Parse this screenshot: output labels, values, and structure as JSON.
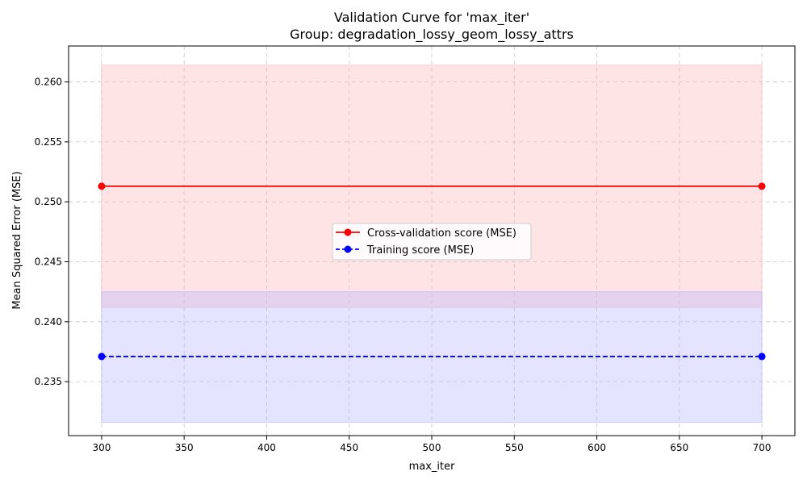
{
  "chart_data": {
    "type": "line",
    "title": "Validation Curve for 'max_iter'",
    "subtitle": "Group: degradation_lossy_geom_lossy_attrs",
    "xlabel": "max_iter",
    "ylabel": "Mean Squared Error (MSE)",
    "xlim": [
      280,
      720
    ],
    "ylim": [
      0.2305,
      0.263
    ],
    "xticks": [
      300,
      350,
      400,
      450,
      500,
      550,
      600,
      650,
      700
    ],
    "yticks": [
      0.235,
      0.24,
      0.245,
      0.25,
      0.255,
      0.26
    ],
    "ytick_labels": [
      "0.235",
      "0.240",
      "0.245",
      "0.250",
      "0.255",
      "0.260"
    ],
    "grid": true,
    "legend_position": "center",
    "series": [
      {
        "name": "Cross-validation score (MSE)",
        "color": "#ff0000",
        "band_color": "#ffb3b8",
        "line_style": "solid",
        "x": [
          300,
          700
        ],
        "y": [
          0.2513,
          0.2513
        ],
        "band_upper": [
          0.2614,
          0.2614
        ],
        "band_lower": [
          0.2412,
          0.2412
        ]
      },
      {
        "name": "Training score (MSE)",
        "color": "#0000ff",
        "band_color": "#b3b3ff",
        "line_style": "dashed",
        "x": [
          300,
          700
        ],
        "y": [
          0.2371,
          0.2371
        ],
        "band_upper": [
          0.2425,
          0.2425
        ],
        "band_lower": [
          0.2316,
          0.2316
        ]
      }
    ]
  }
}
